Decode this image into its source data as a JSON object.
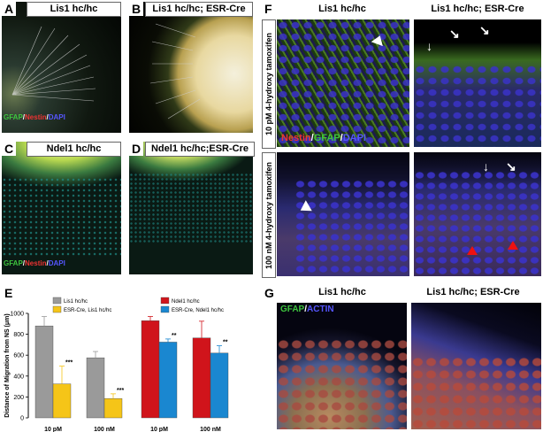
{
  "panels": {
    "A": {
      "letter": "A",
      "title": "Lis1 hc/hc",
      "legend": {
        "gfap": "GFAP",
        "nestin": "Nestin",
        "dapi": "DAPI"
      }
    },
    "B": {
      "letter": "B",
      "title": "Lis1 hc/hc; ESR-Cre"
    },
    "C": {
      "letter": "C",
      "title": "Ndel1 hc/hc",
      "legend": {
        "gfap": "GFAP",
        "nestin": "Nestin",
        "dapi": "DAPI"
      }
    },
    "D": {
      "letter": "D",
      "title": "Ndel1 hc/hc;ESR-Cre"
    },
    "E": {
      "letter": "E"
    },
    "F": {
      "letter": "F",
      "col1": "Lis1 hc/hc",
      "col2": "Lis1 hc/hc; ESR-Cre",
      "row1": "10 pM 4-hydroxy tamoxifen",
      "row2": "100 nM 4-hydroxy tamoxifen",
      "legend": {
        "nestin": "Nestin",
        "gfap": "GFAP",
        "dapi": "DAPI"
      }
    },
    "G": {
      "letter": "G",
      "col1": "Lis1 hc/hc",
      "col2": "Lis1 hc/hc; ESR-Cre",
      "legend": {
        "gfap": "GFAP",
        "actin": "ACTIN"
      }
    }
  },
  "colors": {
    "lis1_ctrl": "#9a9a9a",
    "lis1_cre": "#f5c518",
    "ndel1_ctrl": "#d0141b",
    "ndel1_cre": "#1a87d0"
  },
  "chart_data": {
    "type": "bar",
    "ylabel": "Distance of Migration from NS (μm)",
    "ylim": [
      0,
      1000
    ],
    "yticks": [
      0,
      200,
      400,
      600,
      800,
      1000
    ],
    "categories": [
      "10 pM",
      "100 nM",
      "10 pM",
      "100 nM"
    ],
    "groups": [
      {
        "legend": [
          "Lis1 hc/hc",
          "ESR-Cre, Lis1 hc/hc"
        ],
        "series": [
          {
            "name": "Lis1 hc/hc",
            "values": [
              880,
              575
            ],
            "errors": [
              90,
              60
            ]
          },
          {
            "name": "ESR-Cre, Lis1 hc/hc",
            "values": [
              325,
              185
            ],
            "errors": [
              170,
              45
            ]
          }
        ],
        "significance": [
          "***",
          "***"
        ]
      },
      {
        "legend": [
          "Ndel1 hc/hc",
          "ESR-Cre, Ndel1 hc/hc"
        ],
        "series": [
          {
            "name": "Ndel1 hc/hc",
            "values": [
              930,
              765
            ],
            "errors": [
              40,
              160
            ]
          },
          {
            "name": "ESR-Cre, Ndel1 hc/hc",
            "values": [
              725,
              620
            ],
            "errors": [
              30,
              70
            ]
          }
        ],
        "significance": [
          "**",
          "**"
        ]
      }
    ]
  }
}
